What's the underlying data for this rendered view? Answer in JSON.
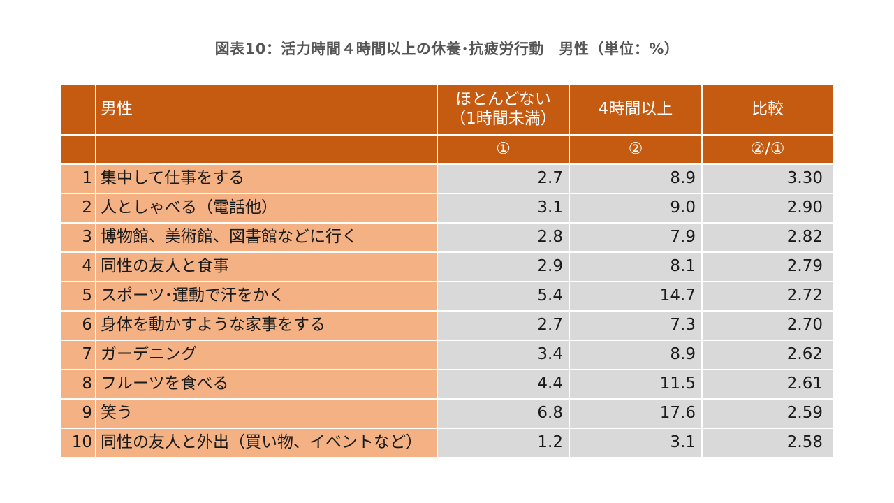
{
  "chart_data": {
    "type": "table",
    "title": "図表10：活力時間４時間以上の休養･抗疲労行動　男性（単位：%）",
    "headers": {
      "label": "男性",
      "col1_line1": "ほとんどない",
      "col1_line2": "（1時間未満）",
      "col2": "4時間以上",
      "col3": "比較",
      "col1_mark": "①",
      "col2_mark": "②",
      "col3_mark": "②/①"
    },
    "rows": [
      {
        "rank": "1",
        "label": "集中して仕事をする",
        "col1": "2.7",
        "col2": "8.9",
        "ratio": "3.30"
      },
      {
        "rank": "2",
        "label": "人としゃべる（電話他）",
        "col1": "3.1",
        "col2": "9.0",
        "ratio": "2.90"
      },
      {
        "rank": "3",
        "label": "博物館、美術館、図書館などに行く",
        "col1": "2.8",
        "col2": "7.9",
        "ratio": "2.82"
      },
      {
        "rank": "4",
        "label": "同性の友人と食事",
        "col1": "2.9",
        "col2": "8.1",
        "ratio": "2.79"
      },
      {
        "rank": "5",
        "label": "スポーツ･運動で汗をかく",
        "col1": "5.4",
        "col2": "14.7",
        "ratio": "2.72"
      },
      {
        "rank": "6",
        "label": "身体を動かすような家事をする",
        "col1": "2.7",
        "col2": "7.3",
        "ratio": "2.70"
      },
      {
        "rank": "7",
        "label": "ガーデニング",
        "col1": "3.4",
        "col2": "8.9",
        "ratio": "2.62"
      },
      {
        "rank": "8",
        "label": "フルーツを食べる",
        "col1": "4.4",
        "col2": "11.5",
        "ratio": "2.61"
      },
      {
        "rank": "9",
        "label": "笑う",
        "col1": "6.8",
        "col2": "17.6",
        "ratio": "2.59"
      },
      {
        "rank": "10",
        "label": "同性の友人と外出（買い物、イベントなど）",
        "col1": "1.2",
        "col2": "3.1",
        "ratio": "2.58"
      }
    ]
  },
  "colors": {
    "header_bg": "#c55a11",
    "label_bg": "#f4b183",
    "value_bg": "#d9d9d9"
  }
}
